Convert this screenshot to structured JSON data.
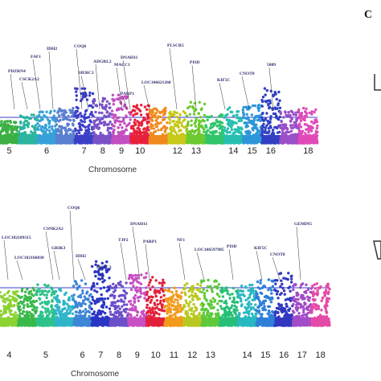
{
  "panel_label": "C",
  "chart_data": [
    {
      "type": "scatter",
      "subtype": "manhattan",
      "xlabel": "Chromosome",
      "ylabel": "",
      "threshold_line": true,
      "categories": [
        "5",
        "6",
        "7",
        "8",
        "9",
        "10",
        "12",
        "13",
        "14",
        "15",
        "16",
        "18"
      ],
      "chromosomes": [
        {
          "label": "5",
          "color": "#3cb043",
          "height": 0.35
        },
        {
          "label": "",
          "color": "#2bb5a0",
          "height": 0.45
        },
        {
          "label": "6",
          "color": "#37a0d8",
          "height": 0.5
        },
        {
          "label": "",
          "color": "#5a7fd0",
          "height": 0.55
        },
        {
          "label": "7",
          "color": "#3b3fc8",
          "height": 0.85
        },
        {
          "label": "8",
          "color": "#7a52c8",
          "height": 0.7
        },
        {
          "label": "9",
          "color": "#c34fc0",
          "height": 0.75
        },
        {
          "label": "10",
          "color": "#e8203a",
          "height": 0.6
        },
        {
          "label": "",
          "color": "#f08a1e",
          "height": 0.55
        },
        {
          "label": "12",
          "color": "#c6c81a",
          "height": 0.5
        },
        {
          "label": "13",
          "color": "#6cc92f",
          "height": 0.65
        },
        {
          "label": "",
          "color": "#2fc56a",
          "height": 0.45
        },
        {
          "label": "14",
          "color": "#27bfb0",
          "height": 0.55
        },
        {
          "label": "15",
          "color": "#2c96d9",
          "height": 0.6
        },
        {
          "label": "16",
          "color": "#3140c2",
          "height": 0.85
        },
        {
          "label": "",
          "color": "#9a4ec8",
          "height": 0.5
        },
        {
          "label": "18",
          "color": "#e04ab8",
          "height": 0.55
        }
      ],
      "annotations": [
        "PDZRN4",
        "CSCK2A2",
        "FAF1",
        "IDH2",
        "COQ6",
        "HERC3",
        "ADGRL2",
        "MACC1",
        "DNAH11",
        "PARP1",
        "LOC106621260",
        "PLSCR5",
        "PISD",
        "KIF5C",
        "CNOT8",
        "5089"
      ]
    },
    {
      "type": "scatter",
      "subtype": "manhattan",
      "xlabel": "Chromosome",
      "ylabel": "",
      "threshold_line": true,
      "categories": [
        "4",
        "5",
        "6",
        "7",
        "8",
        "9",
        "10",
        "11",
        "12",
        "13",
        "14",
        "15",
        "16",
        "17",
        "18"
      ],
      "chromosomes": [
        {
          "label": "4",
          "color": "#8bd233",
          "height": 0.45
        },
        {
          "label": "",
          "color": "#3bb84a",
          "height": 0.5
        },
        {
          "label": "5",
          "color": "#2cc28a",
          "height": 0.55
        },
        {
          "label": "",
          "color": "#2fb5c9",
          "height": 0.5
        },
        {
          "label": "6",
          "color": "#3d86d6",
          "height": 0.6
        },
        {
          "label": "7",
          "color": "#2a35c4",
          "height": 0.85
        },
        {
          "label": "8",
          "color": "#6b4fc9",
          "height": 0.6
        },
        {
          "label": "9",
          "color": "#c84fc4",
          "height": 0.7
        },
        {
          "label": "10",
          "color": "#e3203a",
          "height": 0.65
        },
        {
          "label": "11",
          "color": "#f29a1c",
          "height": 0.5
        },
        {
          "label": "12",
          "color": "#b9c820",
          "height": 0.55
        },
        {
          "label": "13",
          "color": "#5ec93a",
          "height": 0.6
        },
        {
          "label": "",
          "color": "#27bf78",
          "height": 0.5
        },
        {
          "label": "14",
          "color": "#28b8c2",
          "height": 0.55
        },
        {
          "label": "15",
          "color": "#2f7fd8",
          "height": 0.6
        },
        {
          "label": "16",
          "color": "#3237c0",
          "height": 0.7
        },
        {
          "label": "17",
          "color": "#a24cc8",
          "height": 0.55
        },
        {
          "label": "18",
          "color": "#e44aa8",
          "height": 0.55
        }
      ],
      "annotations": [
        "LOC102189315",
        "LOC102166830",
        "CSNK2A2",
        "COQ6",
        "GRIK3",
        "IDH2",
        "HERC3",
        "TJP2",
        "DNAH11",
        "PARP1",
        "NF1",
        "LOC106597985",
        "PISD",
        "KIF5C",
        "CNOT8",
        "GEMIN5"
      ]
    }
  ]
}
